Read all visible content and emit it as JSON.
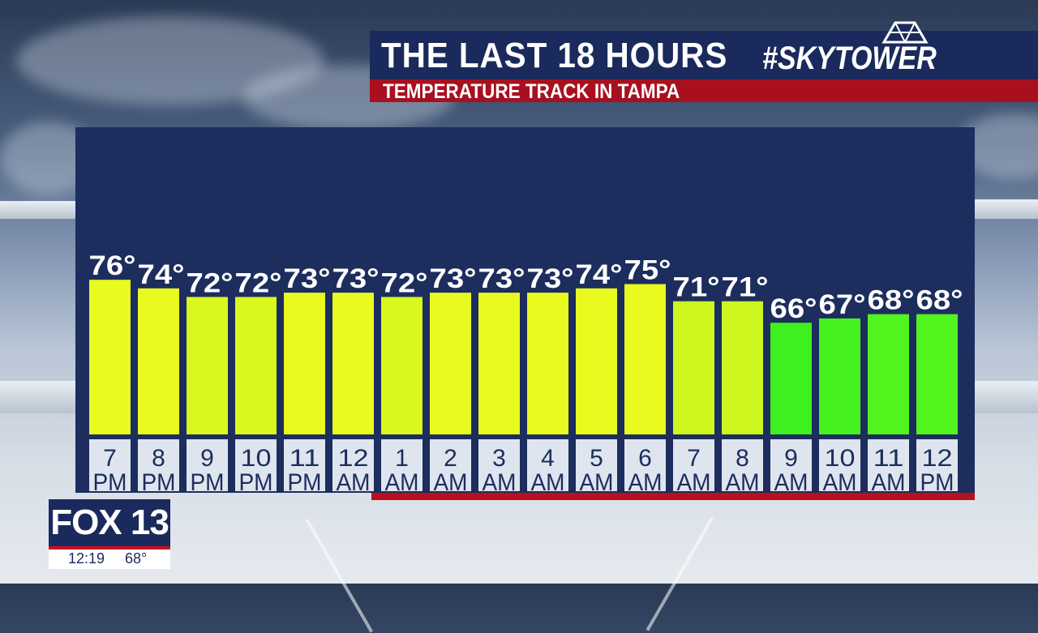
{
  "header": {
    "title": "THE LAST 18 HOURS",
    "subtitle": "TEMPERATURE TRACK IN TAMPA",
    "brand": "#SKYTOWER"
  },
  "colors": {
    "navy": "#1c2d5e",
    "red": "#b8101f",
    "label_bg": "#dfe5ee"
  },
  "chart_data": {
    "type": "bar",
    "categories": [
      "7 PM",
      "8 PM",
      "9 PM",
      "10 PM",
      "11 PM",
      "12 AM",
      "1 AM",
      "2 AM",
      "3 AM",
      "4 AM",
      "5 AM",
      "6 AM",
      "7 AM",
      "8 AM",
      "9 AM",
      "10 AM",
      "11 AM",
      "12 PM"
    ],
    "category_lines": [
      [
        "7",
        "PM"
      ],
      [
        "8",
        "PM"
      ],
      [
        "9",
        "PM"
      ],
      [
        "10",
        "PM"
      ],
      [
        "11",
        "PM"
      ],
      [
        "12",
        "AM"
      ],
      [
        "1",
        "AM"
      ],
      [
        "2",
        "AM"
      ],
      [
        "3",
        "AM"
      ],
      [
        "4",
        "AM"
      ],
      [
        "5",
        "AM"
      ],
      [
        "6",
        "AM"
      ],
      [
        "7",
        "AM"
      ],
      [
        "8",
        "AM"
      ],
      [
        "9",
        "AM"
      ],
      [
        "10",
        "AM"
      ],
      [
        "11",
        "AM"
      ],
      [
        "12",
        "PM"
      ]
    ],
    "values": [
      76,
      74,
      72,
      72,
      73,
      73,
      72,
      73,
      73,
      73,
      74,
      75,
      71,
      71,
      66,
      67,
      68,
      68
    ],
    "value_labels": [
      "76°",
      "74°",
      "72°",
      "72°",
      "73°",
      "73°",
      "72°",
      "73°",
      "73°",
      "73°",
      "74°",
      "75°",
      "71°",
      "71°",
      "66°",
      "67°",
      "68°",
      "68°"
    ],
    "bar_colors": [
      "#e8fa1e",
      "#e8fa1e",
      "#d8f81e",
      "#d8f81e",
      "#e8fa1e",
      "#e8fa1e",
      "#d8f81e",
      "#e8fa1e",
      "#e8fa1e",
      "#e8fa1e",
      "#e8fa1e",
      "#e8fa1e",
      "#ccf61e",
      "#ccf61e",
      "#3ef01e",
      "#46f21e",
      "#52f41e",
      "#52f41e"
    ],
    "ylim": [
      40,
      80
    ],
    "unit": "°F"
  },
  "bug": {
    "logo": "FOX 13",
    "time": "12:19",
    "temp": "68°"
  }
}
